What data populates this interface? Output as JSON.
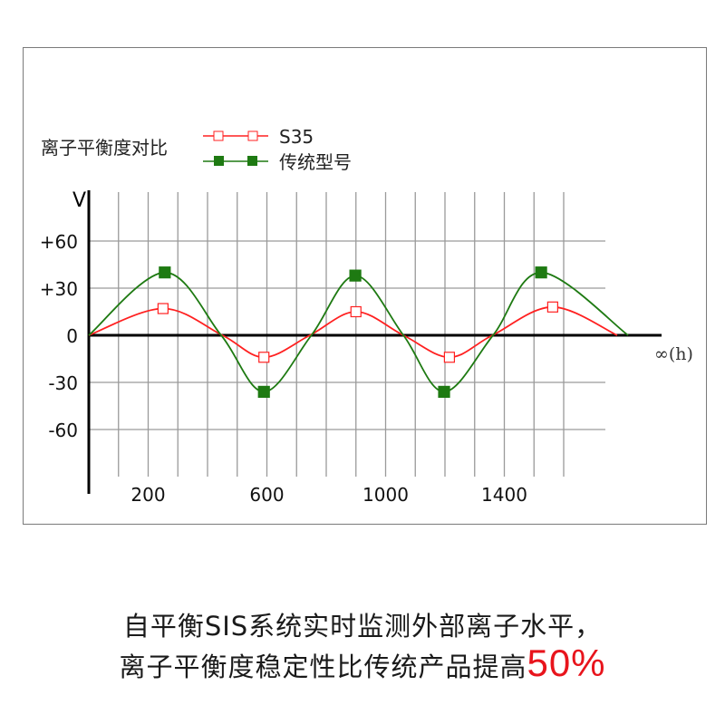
{
  "chart_data": {
    "type": "line",
    "title": "离子平衡度对比",
    "ylabel": "V",
    "xlabel": "∞(h)",
    "xlim": [
      0,
      1700
    ],
    "ylim": [
      -80,
      80
    ],
    "x_tick_labels": [
      "200",
      "600",
      "1000",
      "1400"
    ],
    "x_ticks": [
      200,
      600,
      1000,
      1400
    ],
    "x_gridlines": [
      100,
      200,
      300,
      400,
      500,
      600,
      700,
      800,
      900,
      1000,
      1100,
      1200,
      1300,
      1400,
      1500,
      1600
    ],
    "y_tick_labels": [
      "+60",
      "+30",
      "0",
      "-30",
      "-60"
    ],
    "y_ticks": [
      60,
      30,
      0,
      -30,
      -60
    ],
    "grid": true,
    "legend_placement": "top-left",
    "series": [
      {
        "name": "S35",
        "color": "#ff2020",
        "marker": "hollow-square",
        "points": [
          [
            0,
            0
          ],
          [
            250,
            17
          ],
          [
            450,
            0
          ],
          [
            590,
            -14
          ],
          [
            745,
            0
          ],
          [
            900,
            15
          ],
          [
            1060,
            0
          ],
          [
            1215,
            -14
          ],
          [
            1360,
            0
          ],
          [
            1563,
            18
          ],
          [
            1780,
            0
          ]
        ],
        "markers": [
          [
            250,
            17
          ],
          [
            590,
            -14
          ],
          [
            900,
            15
          ],
          [
            1215,
            -14
          ],
          [
            1563,
            18
          ]
        ]
      },
      {
        "name": "传统型号",
        "color": "#1e7a12",
        "marker": "filled-square",
        "points": [
          [
            0,
            0
          ],
          [
            256,
            40
          ],
          [
            446,
            0
          ],
          [
            590,
            -36
          ],
          [
            750,
            0
          ],
          [
            898,
            38
          ],
          [
            1060,
            0
          ],
          [
            1197,
            -36
          ],
          [
            1362,
            0
          ],
          [
            1524,
            40
          ],
          [
            1817,
            0
          ]
        ],
        "markers": [
          [
            256,
            40
          ],
          [
            590,
            -36
          ],
          [
            898,
            38
          ],
          [
            1197,
            -36
          ],
          [
            1524,
            40
          ]
        ]
      }
    ]
  },
  "caption": {
    "line1": "自平衡SIS系统实时监测外部离子水平，",
    "line2": "离子平衡度稳定性比传统产品提高",
    "highlight": "50%"
  }
}
